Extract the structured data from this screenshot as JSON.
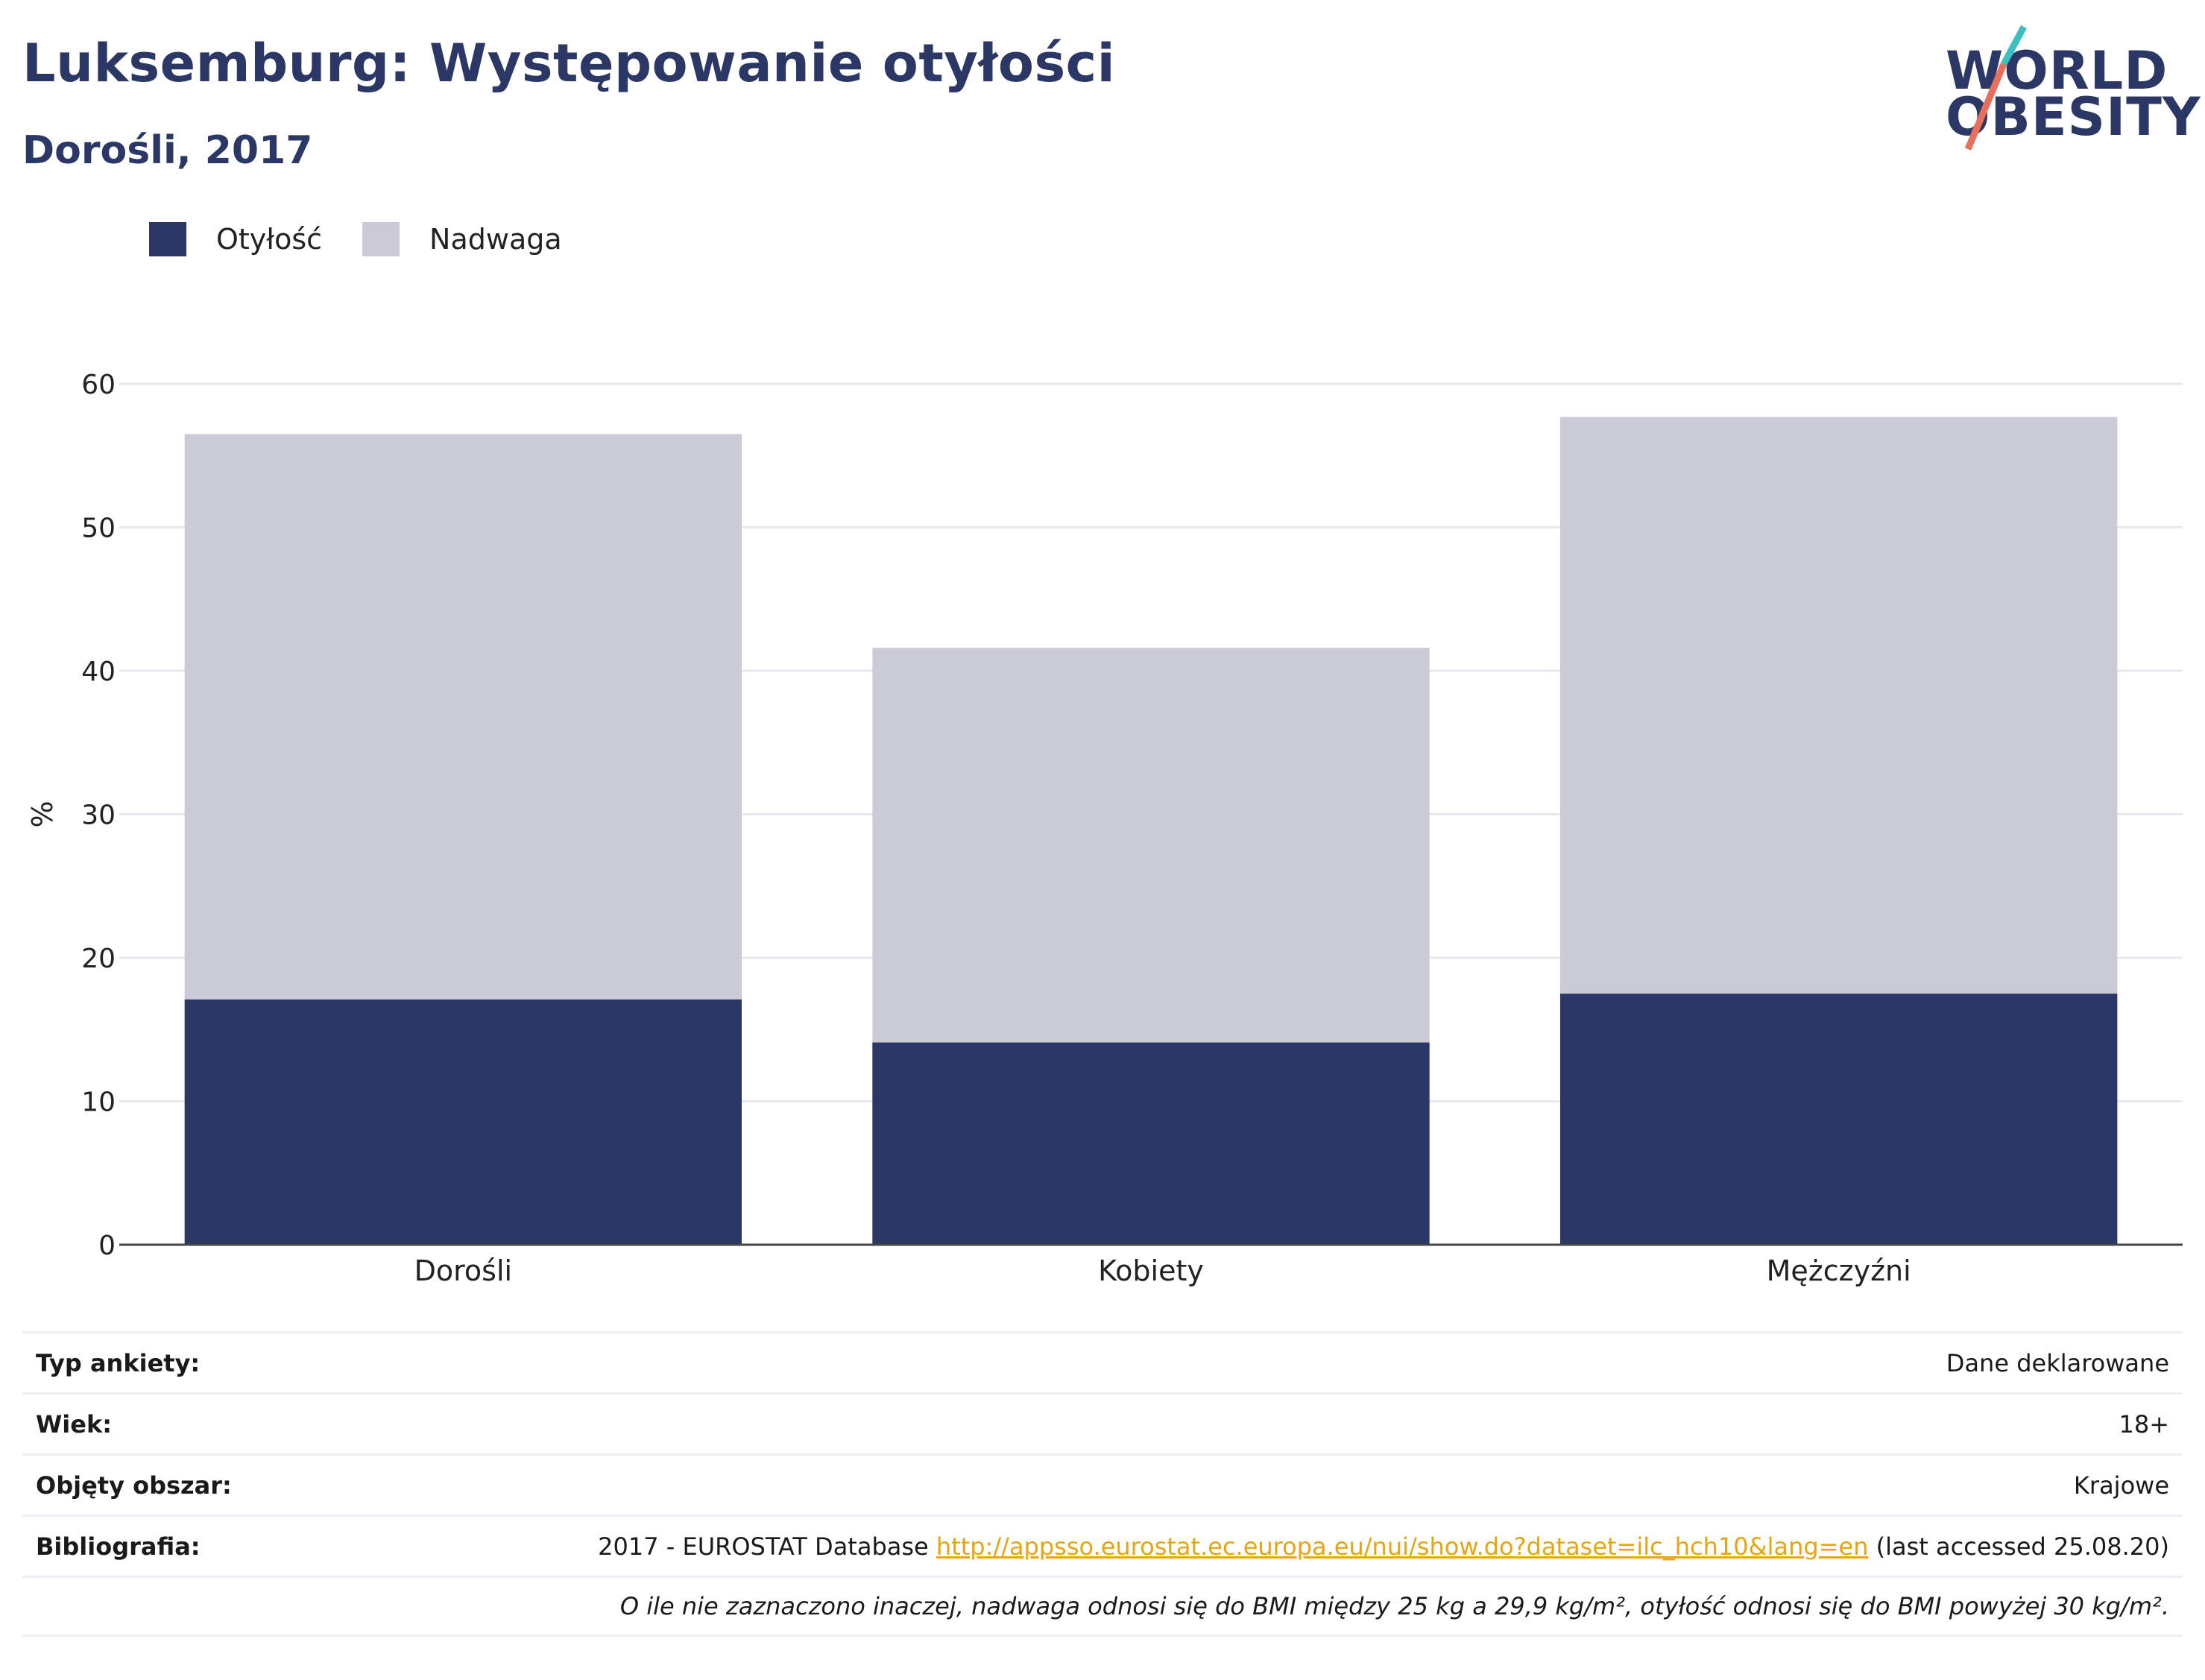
{
  "title": "Luksemburg: Występowanie otyłości",
  "subtitle": "Dorośli, 2017",
  "logo": {
    "line1": "WORLD",
    "line2": "OBESITY"
  },
  "colors": {
    "obesity": "#2b3765",
    "overweight": "#cacbd7",
    "accent_teal": "#3bbfbf",
    "accent_red": "#e8705a"
  },
  "chart_data": {
    "type": "bar",
    "stacked": true,
    "categories": [
      "Dorośli",
      "Kobiety",
      "Mężczyźni"
    ],
    "series": [
      {
        "name": "Otyłość",
        "values": [
          17.1,
          14.1,
          17.5
        ]
      },
      {
        "name": "Nadwaga",
        "values": [
          39.4,
          27.5,
          40.2
        ]
      }
    ],
    "ylabel": "%",
    "ylim": [
      0,
      60
    ],
    "yticks": [
      0,
      10,
      20,
      30,
      40,
      50,
      60
    ],
    "grid": true,
    "legend": "top-left"
  },
  "info": {
    "rows": [
      {
        "label": "Typ ankiety:",
        "value": "Dane deklarowane"
      },
      {
        "label": "Wiek:",
        "value": "18+"
      },
      {
        "label": "Objęty obszar:",
        "value": "Krajowe"
      }
    ],
    "bibliography": {
      "label": "Bibliografia:",
      "prefix": "2017 - EUROSTAT Database ",
      "link": "http://appsso.eurostat.ec.europa.eu/nui/show.do?dataset=ilc_hch10&lang=en",
      "suffix": " (last accessed 25.08.20)"
    },
    "note": "O ile nie zaznaczono inaczej, nadwaga odnosi się do BMI między 25 kg a 29,9 kg/m², otyłość odnosi się do BMI powyżej 30 kg/m²."
  }
}
